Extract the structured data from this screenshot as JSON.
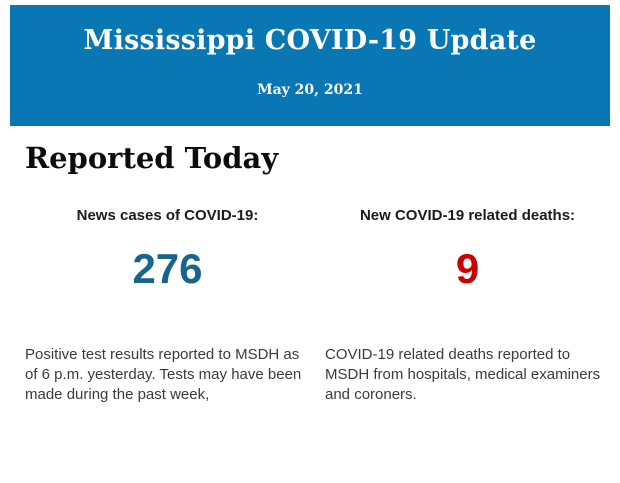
{
  "banner": {
    "title": "Mississippi COVID-19 Update",
    "date": "May 20, 2021",
    "background_color": "#0877b4",
    "text_color": "#ffffff"
  },
  "section": {
    "heading": "Reported Today"
  },
  "stats": [
    {
      "label": "News cases of COVID-19:",
      "value": "276",
      "value_color": "#17648f",
      "description": "Positive test results reported to MSDH as of 6 p.m. yesterday. Tests may have been made during the past week,"
    },
    {
      "label": "New COVID-19 related deaths:",
      "value": "9",
      "value_color": "#cb0000",
      "description": "COVID-19 related deaths reported to MSDH from hospitals, medical examiners and coroners."
    }
  ]
}
